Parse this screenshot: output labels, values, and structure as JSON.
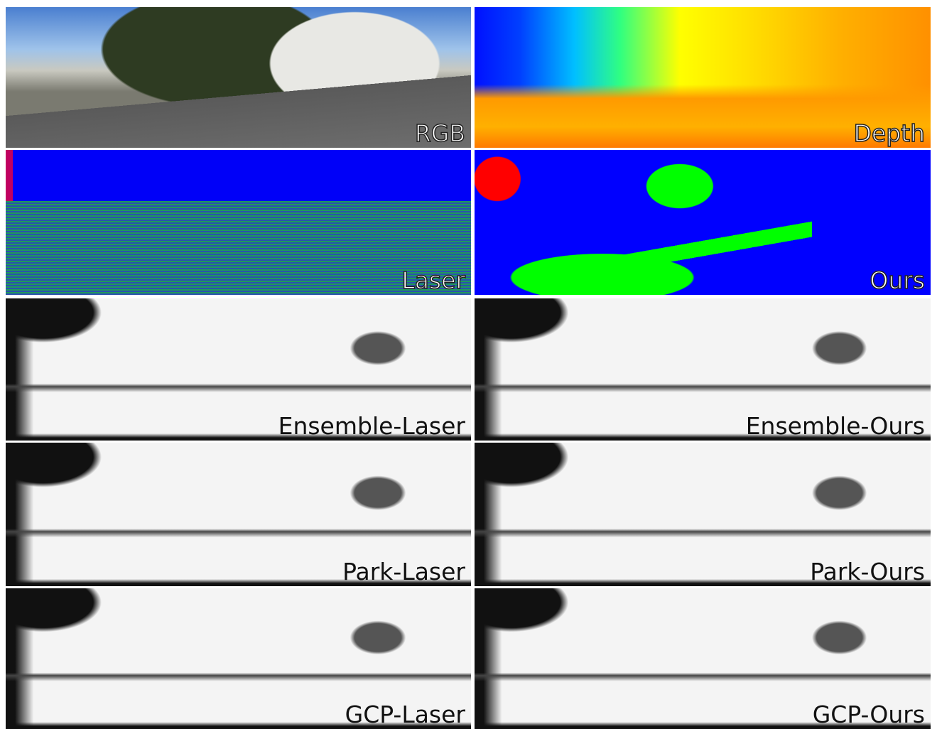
{
  "panels": [
    {
      "label": "RGB"
    },
    {
      "label": "Depth"
    },
    {
      "label": "Laser"
    },
    {
      "label": "Ours"
    },
    {
      "label": "Ensemble-Laser"
    },
    {
      "label": "Ensemble-Ours"
    },
    {
      "label": "Park-Laser"
    },
    {
      "label": "Park-Ours"
    },
    {
      "label": "GCP-Laser"
    },
    {
      "label": "GCP-Ours"
    }
  ]
}
